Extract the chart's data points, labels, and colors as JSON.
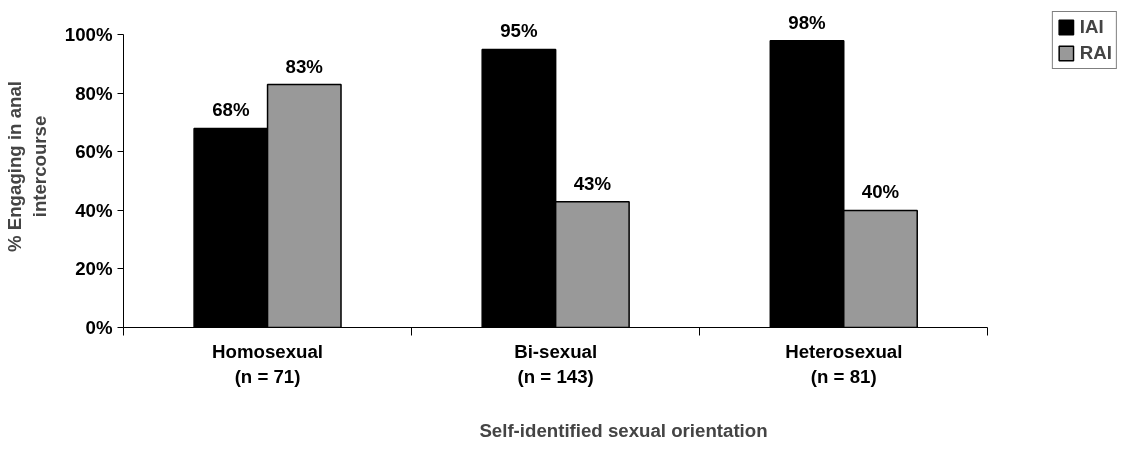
{
  "chart_data": {
    "type": "bar",
    "xlabel": "Self-identified sexual orientation",
    "ylabel": "% Engaging in anal\nintercourse",
    "categories": [
      "Homosexual\n(n = 71)",
      "Bi-sexual\n(n = 143)",
      "Heterosexual\n(n = 81)"
    ],
    "series": [
      {
        "name": "IAI",
        "color": "#000000",
        "values": [
          68,
          95,
          98
        ],
        "value_labels": [
          "68%",
          "95%",
          "98%"
        ]
      },
      {
        "name": "RAI",
        "color": "#999999",
        "values": [
          83,
          43,
          40
        ],
        "value_labels": [
          "83%",
          "43%",
          "40%"
        ]
      }
    ],
    "ylim": [
      0,
      100
    ],
    "yticks": [
      {
        "value": 0,
        "label": "0%"
      },
      {
        "value": 20,
        "label": "20%"
      },
      {
        "value": 40,
        "label": "40%"
      },
      {
        "value": 60,
        "label": "60%"
      },
      {
        "value": 80,
        "label": "80%"
      },
      {
        "value": 100,
        "label": "100%"
      }
    ],
    "grid": false,
    "legend": "top right"
  }
}
